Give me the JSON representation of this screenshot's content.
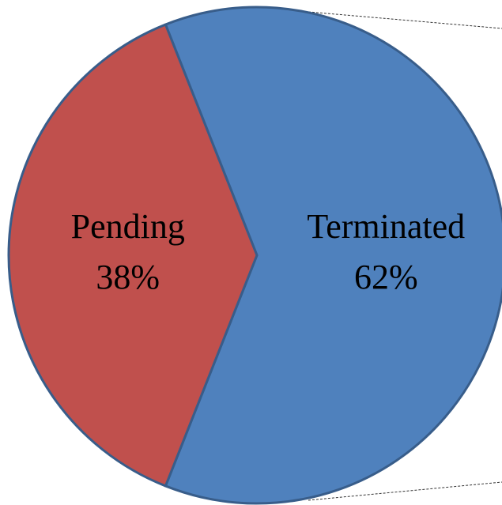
{
  "chart_data": {
    "type": "pie",
    "categories": [
      "Terminated",
      "Pending"
    ],
    "values": [
      62,
      38
    ],
    "value_labels": [
      "62%",
      "38%"
    ],
    "colors": [
      "#4f81bd",
      "#c0504d"
    ]
  }
}
